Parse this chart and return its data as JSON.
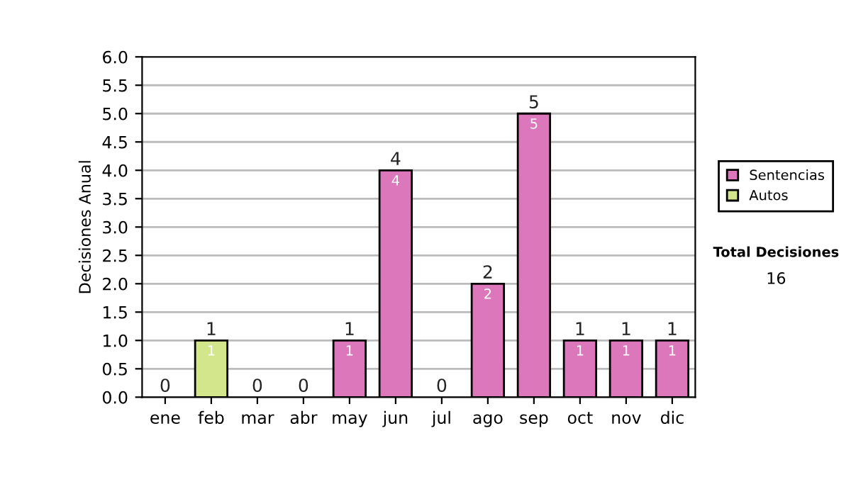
{
  "chart_data": {
    "type": "bar",
    "stacked": true,
    "ylabel": "Decisiones Anual",
    "categories": [
      "ene",
      "feb",
      "mar",
      "abr",
      "may",
      "jun",
      "jul",
      "ago",
      "sep",
      "oct",
      "nov",
      "dic"
    ],
    "series": [
      {
        "name": "Sentencias",
        "color": "#dd77bb",
        "values": [
          0,
          0,
          0,
          0,
          1,
          4,
          0,
          2,
          5,
          1,
          1,
          1
        ],
        "value_labels": [
          null,
          null,
          null,
          null,
          "1",
          "4",
          null,
          "2",
          "5",
          "1",
          "1",
          "1"
        ]
      },
      {
        "name": "Autos",
        "color": "#d4e68c",
        "values": [
          0,
          1,
          0,
          0,
          0,
          0,
          0,
          0,
          0,
          0,
          0,
          0
        ],
        "value_labels": [
          null,
          "1",
          null,
          null,
          null,
          null,
          null,
          null,
          null,
          null,
          null,
          null
        ]
      }
    ],
    "totals": [
      "0",
      "1",
      "0",
      "0",
      "1",
      "4",
      "0",
      "2",
      "5",
      "1",
      "1",
      "1"
    ],
    "ylim": [
      0,
      6
    ],
    "yticks": [
      {
        "value": 0,
        "label": "0.0"
      },
      {
        "value": 0.5,
        "label": "0.5"
      },
      {
        "value": 1,
        "label": "1.0"
      },
      {
        "value": 1.5,
        "label": "1.5"
      },
      {
        "value": 2,
        "label": "2.0"
      },
      {
        "value": 2.5,
        "label": "2.5"
      },
      {
        "value": 3,
        "label": "3.0"
      },
      {
        "value": 3.5,
        "label": "3.5"
      },
      {
        "value": 4,
        "label": "4.0"
      },
      {
        "value": 4.5,
        "label": "4.5"
      },
      {
        "value": 5,
        "label": "5.0"
      },
      {
        "value": 5.5,
        "label": "5.5"
      },
      {
        "value": 6,
        "label": "6.0"
      }
    ],
    "grid": "y",
    "legend": "right",
    "annotations": [
      "Total Decisiones",
      "16"
    ]
  }
}
